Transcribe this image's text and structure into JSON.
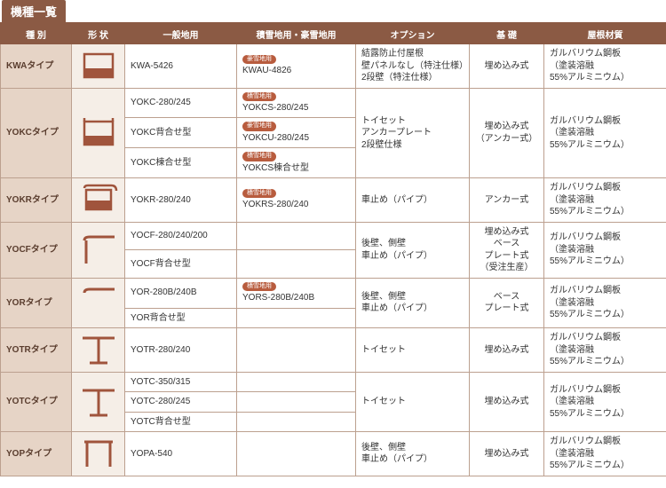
{
  "title": "機種一覧",
  "headers": [
    "種 別",
    "形 状",
    "一般地用",
    "積雪地用・豪雪地用",
    "オプション",
    "基 礎",
    "屋根材質"
  ],
  "badge_snow": "積雪地用",
  "badge_heavy": "豪雪地用",
  "colors": {
    "brand": "#8b5a44",
    "type_bg": "#e6d4c6",
    "shape_bg": "#f5eee7",
    "border": "#bca08f",
    "badge": "#b85c3e",
    "stroke": "#a0543c"
  },
  "rows": [
    {
      "type": "KWAタイプ",
      "general": [
        "KWA-5426"
      ],
      "snow": [
        {
          "badge": "heavy",
          "text": "KWAU-4826"
        }
      ],
      "option": "結露防止付屋根\n壁パネルなし（特注仕様）\n2段壁（特注仕様）",
      "base": "埋め込み式",
      "material": "ガルバリウム鋼板\n（塗装溶融\n55%アルミニウム）"
    },
    {
      "type": "YOKCタイプ",
      "general": [
        "YOKC-280/245",
        "YOKC背合せ型",
        "YOKC棟合せ型"
      ],
      "snow": [
        {
          "badge": "snow",
          "text": "YOKCS-280/245"
        },
        {
          "badge": "heavy",
          "text": "YOKCU-280/245"
        },
        {
          "badge": "snow",
          "text": "YOKCS棟合せ型"
        }
      ],
      "option": "トイセット\nアンカープレート\n2段壁仕様",
      "base": "埋め込み式\n（アンカー式）",
      "material": "ガルバリウム鋼板\n（塗装溶融\n55%アルミニウム）"
    },
    {
      "type": "YOKRタイプ",
      "general": [
        "YOKR-280/240"
      ],
      "snow": [
        {
          "badge": "snow",
          "text": "YOKRS-280/240"
        }
      ],
      "option": "車止め（パイプ）",
      "base": "アンカー式",
      "material": "ガルバリウム鋼板\n（塗装溶融\n55%アルミニウム）"
    },
    {
      "type": "YOCFタイプ",
      "general": [
        "YOCF-280/240/200",
        "YOCF背合せ型"
      ],
      "snow": [
        null,
        null
      ],
      "option": "後壁、側壁\n車止め（パイプ）",
      "base": "埋め込み式\nベース\nプレート式\n（受注生産）",
      "material": "ガルバリウム鋼板\n（塗装溶融\n55%アルミニウム）"
    },
    {
      "type": "YORタイプ",
      "general": [
        "YOR-280B/240B",
        "YOR背合せ型"
      ],
      "snow": [
        {
          "badge": "snow",
          "text": "YORS-280B/240B"
        },
        null
      ],
      "option": "後壁、側壁\n車止め（パイプ）",
      "base": "ベース\nプレート式",
      "material": "ガルバリウム鋼板\n（塗装溶融\n55%アルミニウム）"
    },
    {
      "type": "YOTRタイプ",
      "general": [
        "YOTR-280/240"
      ],
      "snow": [
        null
      ],
      "option": "トイセット",
      "base": "埋め込み式",
      "material": "ガルバリウム鋼板\n（塗装溶融\n55%アルミニウム）"
    },
    {
      "type": "YOTCタイプ",
      "general": [
        "YOTC-350/315",
        "YOTC-280/245",
        "YOTC背合せ型"
      ],
      "snow": [
        null,
        null,
        null
      ],
      "option": "トイセット",
      "base": "埋め込み式",
      "material": "ガルバリウム鋼板\n（塗装溶融\n55%アルミニウム）"
    },
    {
      "type": "YOPタイプ",
      "general": [
        "YOPA-540"
      ],
      "snow": [
        null
      ],
      "option": "後壁、側壁\n車止め（パイプ）",
      "base": "埋め込み式",
      "material": "ガルバリウム鋼板\n（塗装溶融\n55%アルミニウム）"
    }
  ]
}
